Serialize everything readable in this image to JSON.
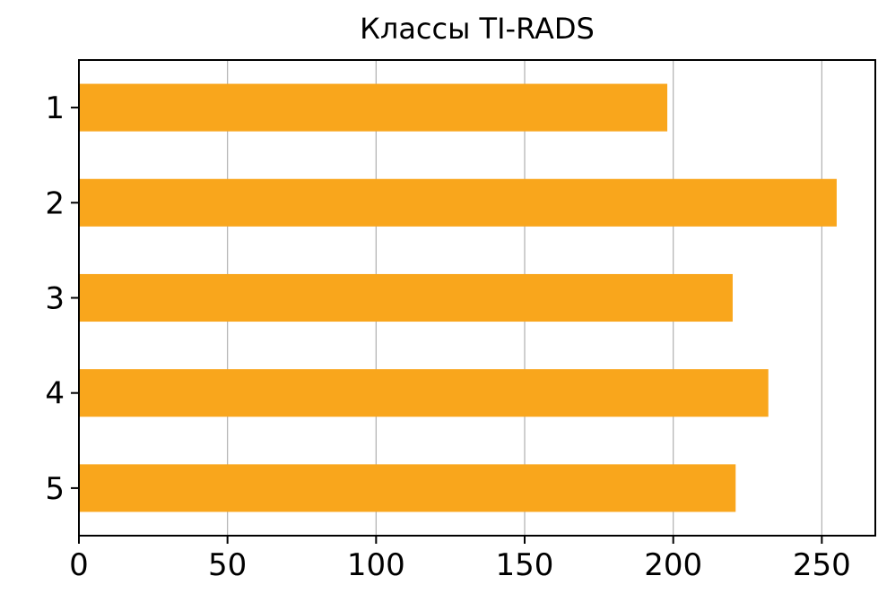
{
  "chart_data": {
    "type": "bar",
    "orientation": "horizontal",
    "title": "Классы TI-RADS",
    "categories": [
      "1",
      "2",
      "3",
      "4",
      "5"
    ],
    "values": [
      198,
      255,
      220,
      232,
      221
    ],
    "xlabel": "",
    "ylabel": "",
    "xlim": [
      0,
      268
    ],
    "xticks": [
      0,
      50,
      100,
      150,
      200,
      250
    ],
    "xtick_labels": [
      "0",
      "50",
      "100",
      "150",
      "200",
      "250"
    ],
    "grid": "vertical",
    "legend": "none",
    "bar_color": "#F9A61C"
  }
}
